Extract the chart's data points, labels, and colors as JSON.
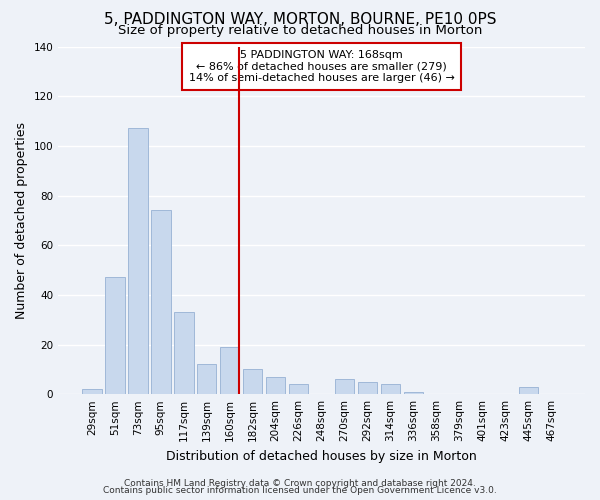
{
  "title": "5, PADDINGTON WAY, MORTON, BOURNE, PE10 0PS",
  "subtitle": "Size of property relative to detached houses in Morton",
  "xlabel": "Distribution of detached houses by size in Morton",
  "ylabel": "Number of detached properties",
  "bar_color": "#c8d8ed",
  "bar_edge_color": "#a0b8d8",
  "categories": [
    "29sqm",
    "51sqm",
    "73sqm",
    "95sqm",
    "117sqm",
    "139sqm",
    "160sqm",
    "182sqm",
    "204sqm",
    "226sqm",
    "248sqm",
    "270sqm",
    "292sqm",
    "314sqm",
    "336sqm",
    "358sqm",
    "379sqm",
    "401sqm",
    "423sqm",
    "445sqm",
    "467sqm"
  ],
  "values": [
    2,
    47,
    107,
    74,
    33,
    12,
    19,
    10,
    7,
    4,
    0,
    6,
    5,
    4,
    1,
    0,
    0,
    0,
    0,
    3,
    0
  ],
  "ylim": [
    0,
    140
  ],
  "yticks": [
    0,
    20,
    40,
    60,
    80,
    100,
    120,
    140
  ],
  "vline_index": 6,
  "vline_color": "#cc0000",
  "annotation_title": "5 PADDINGTON WAY: 168sqm",
  "annotation_line1": "← 86% of detached houses are smaller (279)",
  "annotation_line2": "14% of semi-detached houses are larger (46) →",
  "annotation_box_color": "#ffffff",
  "annotation_box_edge": "#cc0000",
  "footer1": "Contains HM Land Registry data © Crown copyright and database right 2024.",
  "footer2": "Contains public sector information licensed under the Open Government Licence v3.0.",
  "background_color": "#eef2f8",
  "grid_color": "#ffffff",
  "title_fontsize": 11,
  "subtitle_fontsize": 9.5,
  "axis_label_fontsize": 9,
  "tick_fontsize": 7.5,
  "annotation_fontsize": 8,
  "footer_fontsize": 6.5
}
